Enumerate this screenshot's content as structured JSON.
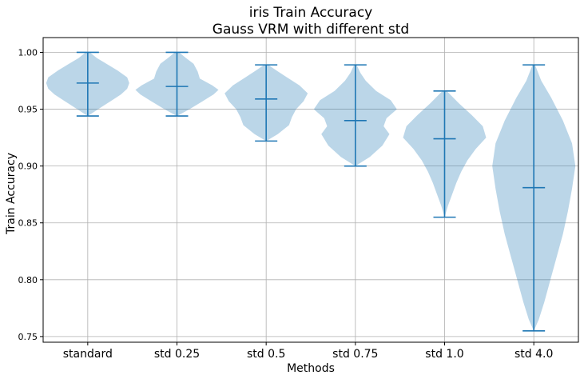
{
  "chart_data": {
    "type": "violin",
    "title": [
      "iris Train Accuracy",
      "Gauss VRM with different std"
    ],
    "xlabel": "Methods",
    "ylabel": "Train Accuracy",
    "ylim": [
      0.745,
      1.013
    ],
    "yticks": [
      "0.75",
      "0.80",
      "0.85",
      "0.90",
      "0.95",
      "1.00"
    ],
    "grid": true,
    "colors": {
      "body": "#1f77b4",
      "body_opacity": 0.3,
      "lines": "#1f77b4"
    },
    "categories": [
      "standard",
      "std 0.25",
      "std 0.5",
      "std 0.75",
      "std 1.0",
      "std 4.0"
    ],
    "series": [
      {
        "category": "standard",
        "min": 0.944,
        "max": 1.0,
        "mean": 0.973,
        "profile": [
          [
            0.944,
            0.0
          ],
          [
            0.95,
            0.25
          ],
          [
            0.957,
            0.55
          ],
          [
            0.963,
            0.8
          ],
          [
            0.968,
            0.95
          ],
          [
            0.973,
            1.0
          ],
          [
            0.978,
            0.95
          ],
          [
            0.984,
            0.72
          ],
          [
            0.99,
            0.45
          ],
          [
            0.995,
            0.22
          ],
          [
            1.0,
            0.05
          ]
        ]
      },
      {
        "category": "std 0.25",
        "min": 0.944,
        "max": 1.0,
        "mean": 0.97,
        "profile": [
          [
            0.944,
            0.0
          ],
          [
            0.95,
            0.3
          ],
          [
            0.957,
            0.62
          ],
          [
            0.963,
            0.88
          ],
          [
            0.967,
            1.0
          ],
          [
            0.971,
            0.85
          ],
          [
            0.977,
            0.55
          ],
          [
            0.983,
            0.5
          ],
          [
            0.99,
            0.4
          ],
          [
            0.995,
            0.22
          ],
          [
            1.0,
            0.05
          ]
        ]
      },
      {
        "category": "std 0.5",
        "min": 0.922,
        "max": 0.989,
        "mean": 0.959,
        "profile": [
          [
            0.922,
            0.0
          ],
          [
            0.928,
            0.28
          ],
          [
            0.936,
            0.55
          ],
          [
            0.943,
            0.62
          ],
          [
            0.95,
            0.72
          ],
          [
            0.957,
            0.9
          ],
          [
            0.964,
            1.0
          ],
          [
            0.971,
            0.8
          ],
          [
            0.978,
            0.5
          ],
          [
            0.984,
            0.25
          ],
          [
            0.989,
            0.05
          ]
        ]
      },
      {
        "category": "std 0.75",
        "min": 0.9,
        "max": 0.989,
        "mean": 0.94,
        "profile": [
          [
            0.9,
            0.0
          ],
          [
            0.908,
            0.35
          ],
          [
            0.918,
            0.65
          ],
          [
            0.928,
            0.82
          ],
          [
            0.935,
            0.68
          ],
          [
            0.942,
            0.75
          ],
          [
            0.95,
            1.0
          ],
          [
            0.958,
            0.85
          ],
          [
            0.966,
            0.5
          ],
          [
            0.975,
            0.25
          ],
          [
            0.982,
            0.12
          ],
          [
            0.989,
            0.03
          ]
        ]
      },
      {
        "category": "std 1.0",
        "min": 0.855,
        "max": 0.966,
        "mean": 0.924,
        "profile": [
          [
            0.855,
            0.0
          ],
          [
            0.865,
            0.08
          ],
          [
            0.875,
            0.18
          ],
          [
            0.885,
            0.28
          ],
          [
            0.895,
            0.4
          ],
          [
            0.905,
            0.55
          ],
          [
            0.915,
            0.75
          ],
          [
            0.925,
            1.0
          ],
          [
            0.935,
            0.92
          ],
          [
            0.945,
            0.65
          ],
          [
            0.955,
            0.35
          ],
          [
            0.966,
            0.05
          ]
        ]
      },
      {
        "category": "std 4.0",
        "min": 0.755,
        "max": 0.989,
        "mean": 0.881,
        "profile": [
          [
            0.755,
            0.0
          ],
          [
            0.765,
            0.12
          ],
          [
            0.78,
            0.25
          ],
          [
            0.8,
            0.4
          ],
          [
            0.82,
            0.55
          ],
          [
            0.84,
            0.7
          ],
          [
            0.86,
            0.82
          ],
          [
            0.88,
            0.92
          ],
          [
            0.9,
            1.0
          ],
          [
            0.92,
            0.92
          ],
          [
            0.94,
            0.7
          ],
          [
            0.96,
            0.42
          ],
          [
            0.975,
            0.18
          ],
          [
            0.989,
            0.03
          ]
        ]
      }
    ]
  }
}
